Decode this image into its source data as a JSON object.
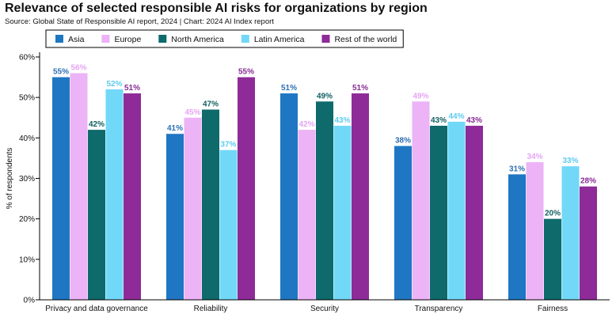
{
  "title": "Relevance of selected responsible AI risks for organizations by region",
  "subtitle": "Source: Global State of Responsible AI report, 2024 | Chart: 2024 AI Index report",
  "chart_data": {
    "type": "bar",
    "categories": [
      "Privacy and data governance",
      "Reliability",
      "Security",
      "Transparency",
      "Fairness"
    ],
    "series": [
      {
        "name": "Asia",
        "color": "#1f77c4",
        "label_color": "#2d6fb3",
        "values": [
          55,
          41,
          51,
          38,
          31
        ]
      },
      {
        "name": "Europe",
        "color": "#ecb3f7",
        "label_color": "#e6a4f4",
        "values": [
          56,
          45,
          42,
          49,
          34
        ]
      },
      {
        "name": "North America",
        "color": "#0f6a6b",
        "label_color": "#0f5f60",
        "values": [
          42,
          47,
          49,
          43,
          20
        ]
      },
      {
        "name": "Latin America",
        "color": "#72d8f8",
        "label_color": "#5ccbef",
        "values": [
          52,
          37,
          43,
          44,
          33
        ]
      },
      {
        "name": "Rest of the world",
        "color": "#8e2b98",
        "label_color": "#862a94",
        "values": [
          51,
          55,
          51,
          43,
          28
        ]
      }
    ],
    "ylabel": "% of respondents",
    "ylim": [
      0,
      60
    ],
    "yticks": [
      "0%",
      "10%",
      "20%",
      "30%",
      "40%",
      "50%",
      "60%"
    ],
    "ytick_values": [
      0,
      10,
      20,
      30,
      40,
      50,
      60
    ],
    "value_suffix": "%",
    "legend_position": "top-left",
    "grid": false
  }
}
